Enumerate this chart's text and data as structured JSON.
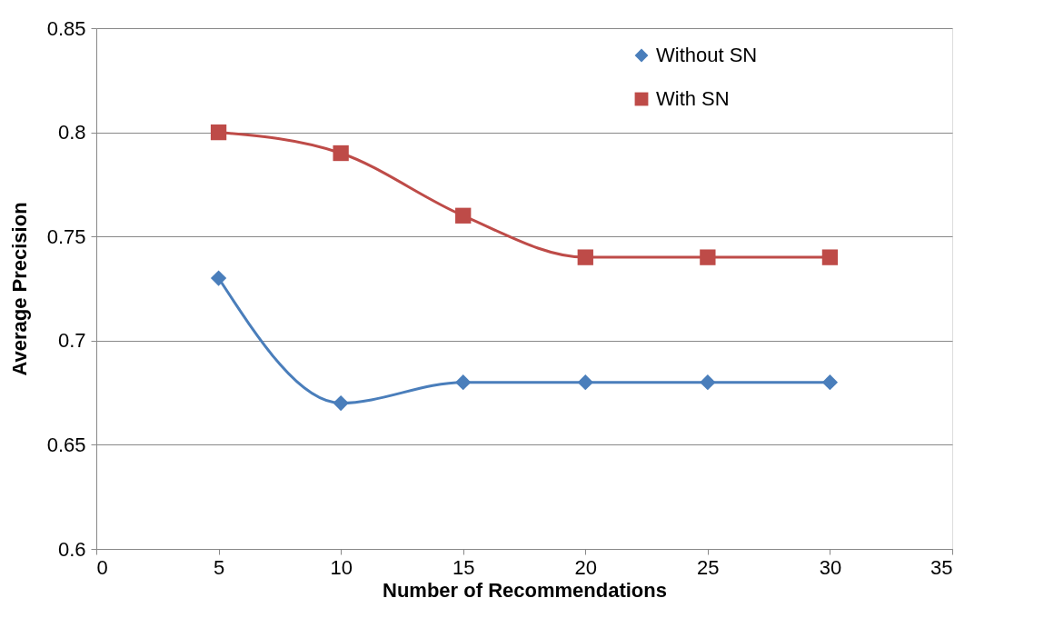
{
  "chart_data": {
    "type": "line",
    "xlabel": "Number of Recommendations",
    "ylabel": "Average Precision",
    "x": [
      5,
      10,
      15,
      20,
      25,
      30
    ],
    "series": [
      {
        "name": "Without SN",
        "color": "#4a7ebb",
        "marker": "diamond",
        "values": [
          0.73,
          0.67,
          0.68,
          0.68,
          0.68,
          0.68
        ]
      },
      {
        "name": "With SN",
        "color": "#be4b48",
        "marker": "square",
        "values": [
          0.8,
          0.79,
          0.76,
          0.74,
          0.74,
          0.74
        ]
      }
    ],
    "xlim": [
      0,
      35
    ],
    "xticks": [
      0,
      5,
      10,
      15,
      20,
      25,
      30,
      35
    ],
    "ylim": [
      0.6,
      0.85
    ],
    "yticks": [
      0.6,
      0.65,
      0.7,
      0.75,
      0.8,
      0.85
    ],
    "grid": "y",
    "legend": "top right",
    "line_style": "solid"
  }
}
